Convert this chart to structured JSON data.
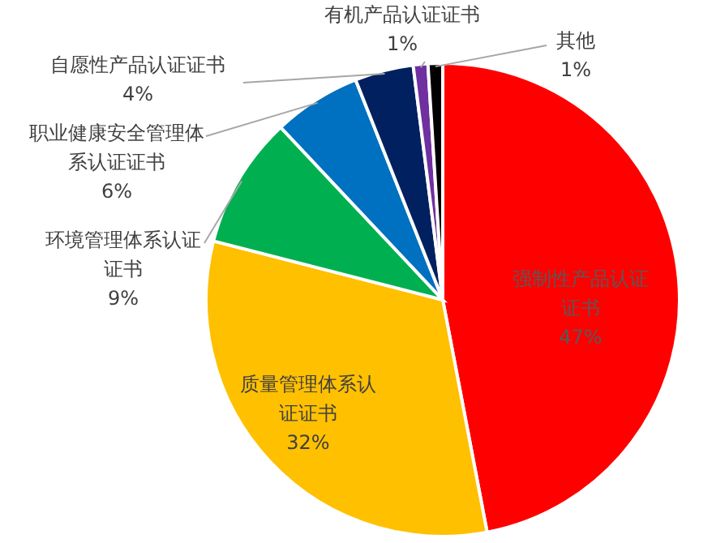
{
  "chart_data": {
    "type": "pie",
    "categories": [
      "强制性产品认证证书",
      "质量管理体系认证证书",
      "环境管理体系认证证书",
      "职业健康安全管理体系认证证书",
      "自愿性产品认证证书",
      "有机产品认证证书",
      "其他"
    ],
    "values": [
      47,
      32,
      9,
      6,
      4,
      1,
      1
    ],
    "colors": [
      "#ff0000",
      "#ffc000",
      "#00b050",
      "#0070c0",
      "#002060",
      "#7030a0",
      "#000000"
    ],
    "value_labels": [
      "47%",
      "32%",
      "9%",
      "6%",
      "4%",
      "1%",
      "1%"
    ]
  }
}
